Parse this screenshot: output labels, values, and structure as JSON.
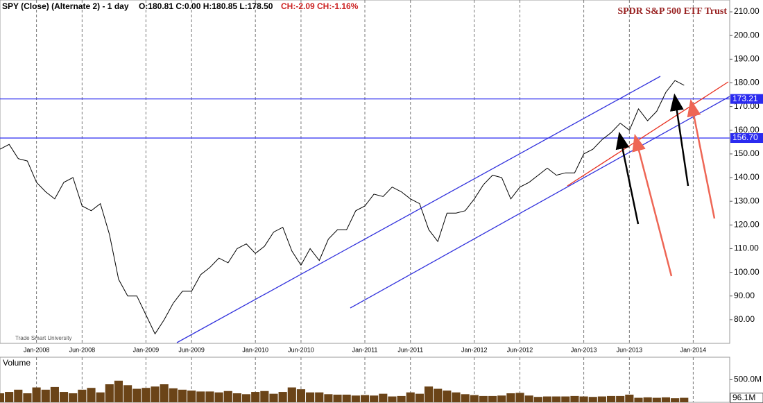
{
  "chart_data": [
    {
      "type": "line",
      "title": "SPDR S&P 500 ETF Trust",
      "header": [
        "SPY (Close) (Alternate 2) - 1 day",
        "O:180.81 C:0.00 H:180.85 L:178.50",
        "CH:-2.09 CH:-1.16%"
      ],
      "watermark": "Trade Smart University",
      "color": "#000000",
      "x": [
        "2007-09",
        "2007-10",
        "2007-11",
        "2007-12",
        "2008-01",
        "2008-02",
        "2008-03",
        "2008-04",
        "2008-05",
        "2008-06",
        "2008-07",
        "2008-08",
        "2008-09",
        "2008-10",
        "2008-11",
        "2008-12",
        "2009-01",
        "2009-02",
        "2009-03",
        "2009-04",
        "2009-05",
        "2009-06",
        "2009-07",
        "2009-08",
        "2009-09",
        "2009-10",
        "2009-11",
        "2009-12",
        "2010-01",
        "2010-02",
        "2010-03",
        "2010-04",
        "2010-05",
        "2010-06",
        "2010-07",
        "2010-08",
        "2010-09",
        "2010-10",
        "2010-11",
        "2010-12",
        "2011-01",
        "2011-02",
        "2011-03",
        "2011-04",
        "2011-05",
        "2011-06",
        "2011-07",
        "2011-08",
        "2011-09",
        "2011-10",
        "2011-11",
        "2011-12",
        "2012-01",
        "2012-02",
        "2012-03",
        "2012-04",
        "2012-05",
        "2012-06",
        "2012-07",
        "2012-08",
        "2012-09",
        "2012-10",
        "2012-11",
        "2012-12",
        "2013-01",
        "2013-02",
        "2013-03",
        "2013-04",
        "2013-05",
        "2013-06",
        "2013-07",
        "2013-08",
        "2013-09",
        "2013-10",
        "2013-11",
        "2013-12"
      ],
      "values": [
        152,
        154,
        148,
        147,
        138,
        134,
        131,
        138,
        140,
        128,
        126,
        129,
        116,
        97,
        90,
        90,
        82,
        74,
        80,
        87,
        92,
        92,
        99,
        102,
        106,
        104,
        110,
        112,
        108,
        111,
        117,
        119,
        109,
        103,
        110,
        105,
        114,
        118,
        118,
        126,
        128,
        133,
        132,
        136,
        134,
        131,
        129,
        118,
        113,
        125,
        125,
        126,
        131,
        137,
        141,
        140,
        131,
        136,
        138,
        141,
        144,
        141,
        142,
        142,
        150,
        152,
        156,
        159,
        163,
        160,
        169,
        164,
        168,
        176,
        181,
        179
      ],
      "xlim": [
        "2007-09",
        "2014-05"
      ],
      "xticks": [
        {
          "value": "2008-01",
          "label": "Jan-2008"
        },
        {
          "value": "2008-06",
          "label": "Jun-2008"
        },
        {
          "value": "2009-01",
          "label": "Jan-2009"
        },
        {
          "value": "2009-06",
          "label": "Jun-2009"
        },
        {
          "value": "2010-01",
          "label": "Jan-2010"
        },
        {
          "value": "2010-06",
          "label": "Jun-2010"
        },
        {
          "value": "2011-01",
          "label": "Jan-2011"
        },
        {
          "value": "2011-06",
          "label": "Jun-2011"
        },
        {
          "value": "2012-01",
          "label": "Jan-2012"
        },
        {
          "value": "2012-06",
          "label": "Jun-2012"
        },
        {
          "value": "2013-01",
          "label": "Jan-2013"
        },
        {
          "value": "2013-06",
          "label": "Jun-2013"
        },
        {
          "value": "2014-01",
          "label": "Jan-2014"
        }
      ],
      "ylim": [
        70,
        215
      ],
      "yticks": [
        {
          "value": 80,
          "label": "80.00"
        },
        {
          "value": 90,
          "label": "90.00"
        },
        {
          "value": 100,
          "label": "100.00"
        },
        {
          "value": 110,
          "label": "110.00"
        },
        {
          "value": 120,
          "label": "120.00"
        },
        {
          "value": 130,
          "label": "130.00"
        },
        {
          "value": 140,
          "label": "140.00"
        },
        {
          "value": 150,
          "label": "150.00"
        },
        {
          "value": 160,
          "label": "160.00"
        },
        {
          "value": 170,
          "label": "170.00"
        },
        {
          "value": 180,
          "label": "180.00"
        },
        {
          "value": 190,
          "label": "190.00"
        },
        {
          "value": 200,
          "label": "200.00"
        },
        {
          "value": 210,
          "label": "210.00"
        }
      ],
      "hlines": [
        173.21,
        {
          "value": 156.7,
          "label": "156.70"
        }
      ],
      "hline_color": "#2b2bf0"
    },
    {
      "type": "bar",
      "title": "Volume",
      "color": "#6b4418",
      "values": [
        200000000,
        230000000,
        280000000,
        200000000,
        330000000,
        280000000,
        340000000,
        230000000,
        200000000,
        280000000,
        320000000,
        220000000,
        400000000,
        480000000,
        380000000,
        300000000,
        320000000,
        350000000,
        400000000,
        310000000,
        280000000,
        260000000,
        240000000,
        240000000,
        220000000,
        250000000,
        200000000,
        180000000,
        230000000,
        250000000,
        190000000,
        230000000,
        330000000,
        290000000,
        220000000,
        220000000,
        180000000,
        170000000,
        170000000,
        150000000,
        160000000,
        150000000,
        190000000,
        130000000,
        140000000,
        220000000,
        190000000,
        350000000,
        300000000,
        260000000,
        220000000,
        180000000,
        160000000,
        140000000,
        140000000,
        150000000,
        200000000,
        210000000,
        150000000,
        120000000,
        130000000,
        130000000,
        130000000,
        140000000,
        130000000,
        120000000,
        130000000,
        140000000,
        140000000,
        170000000,
        100000000,
        110000000,
        100000000,
        110000000,
        90000000,
        100000000
      ],
      "ylim": [
        0,
        1000000000
      ],
      "yticks": [
        {
          "value": 500000000,
          "label": "500.0M"
        }
      ],
      "last_value": {
        "value": 96100000,
        "label": "96.1M"
      }
    }
  ]
}
